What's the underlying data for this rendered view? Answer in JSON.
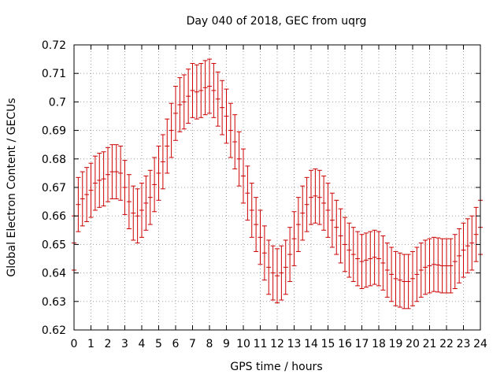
{
  "chart_data": {
    "type": "scatter",
    "title": "Day 040 of 2018, GEC from uqrg",
    "xlabel": "GPS time / hours",
    "ylabel": "Global Electron Content / GECUs",
    "xlim": [
      0,
      24
    ],
    "ylim": [
      0.62,
      0.72
    ],
    "x_ticks": [
      0,
      1,
      2,
      3,
      4,
      5,
      6,
      7,
      8,
      9,
      10,
      11,
      12,
      13,
      14,
      15,
      16,
      17,
      18,
      19,
      20,
      21,
      22,
      23,
      24
    ],
    "y_ticks": [
      0.62,
      0.63,
      0.64,
      0.65,
      0.66,
      0.67,
      0.68,
      0.69,
      0.7,
      0.71,
      0.72
    ],
    "y_tick_labels": [
      "0.62",
      "0.63",
      "0.64",
      "0.65",
      "0.66",
      "0.67",
      "0.68",
      "0.69",
      "0.7",
      "0.71",
      "0.72"
    ],
    "grid": true,
    "error_half_width": 0.0095,
    "series_color": "#cc0000",
    "x": [
      0.0,
      0.25,
      0.5,
      0.75,
      1.0,
      1.25,
      1.5,
      1.75,
      2.0,
      2.25,
      2.5,
      2.75,
      3.0,
      3.25,
      3.5,
      3.75,
      4.0,
      4.25,
      4.5,
      4.75,
      5.0,
      5.25,
      5.5,
      5.75,
      6.0,
      6.25,
      6.5,
      6.75,
      7.0,
      7.25,
      7.5,
      7.75,
      8.0,
      8.25,
      8.5,
      8.75,
      9.0,
      9.25,
      9.5,
      9.75,
      10.0,
      10.25,
      10.5,
      10.75,
      11.0,
      11.25,
      11.5,
      11.75,
      12.0,
      12.25,
      12.5,
      12.75,
      13.0,
      13.25,
      13.5,
      13.75,
      14.0,
      14.25,
      14.5,
      14.75,
      15.0,
      15.25,
      15.5,
      15.75,
      16.0,
      16.25,
      16.5,
      16.75,
      17.0,
      17.25,
      17.5,
      17.75,
      18.0,
      18.25,
      18.5,
      18.75,
      19.0,
      19.25,
      19.5,
      19.75,
      20.0,
      20.25,
      20.5,
      20.75,
      21.0,
      21.25,
      21.5,
      21.75,
      22.0,
      22.25,
      22.5,
      22.75,
      23.0,
      23.25,
      23.5,
      23.75,
      24.0
    ],
    "y": [
      0.6505,
      0.664,
      0.666,
      0.6675,
      0.669,
      0.6715,
      0.6725,
      0.673,
      0.6745,
      0.6755,
      0.6755,
      0.675,
      0.67,
      0.665,
      0.661,
      0.66,
      0.662,
      0.6645,
      0.6665,
      0.671,
      0.675,
      0.679,
      0.6845,
      0.69,
      0.696,
      0.699,
      0.7,
      0.702,
      0.704,
      0.7035,
      0.704,
      0.705,
      0.7055,
      0.704,
      0.701,
      0.698,
      0.695,
      0.69,
      0.686,
      0.68,
      0.674,
      0.668,
      0.662,
      0.657,
      0.6525,
      0.647,
      0.642,
      0.64,
      0.639,
      0.64,
      0.642,
      0.6465,
      0.652,
      0.657,
      0.661,
      0.664,
      0.6665,
      0.667,
      0.6665,
      0.6645,
      0.662,
      0.6585,
      0.656,
      0.653,
      0.65,
      0.648,
      0.6465,
      0.645,
      0.644,
      0.6445,
      0.645,
      0.6455,
      0.645,
      0.6435,
      0.641,
      0.6395,
      0.638,
      0.6375,
      0.637,
      0.637,
      0.638,
      0.6395,
      0.641,
      0.642,
      0.6425,
      0.643,
      0.6428,
      0.6425,
      0.6425,
      0.6425,
      0.644,
      0.646,
      0.648,
      0.6495,
      0.6505,
      0.6535,
      0.656
    ]
  }
}
